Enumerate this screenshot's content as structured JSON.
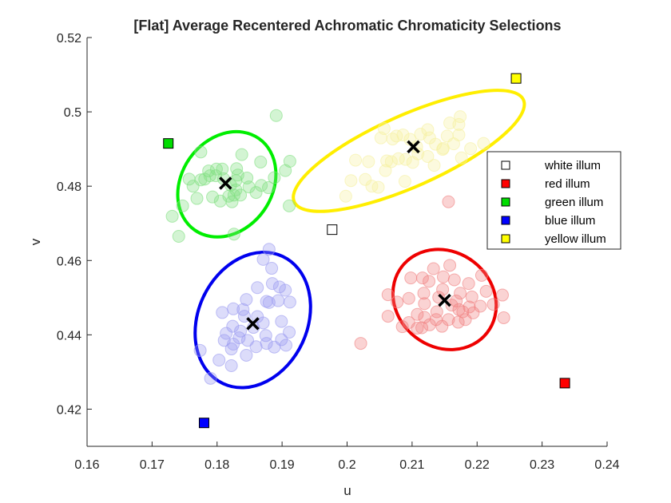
{
  "chart_data": {
    "type": "scatter",
    "title": "[Flat] Average Recentered Achromatic Chromaticity Selections",
    "xlabel": "u",
    "ylabel": "v",
    "xlim": [
      0.16,
      0.24
    ],
    "ylim": [
      0.41,
      0.52
    ],
    "xticks": [
      0.16,
      0.17,
      0.18,
      0.19,
      0.2,
      0.21,
      0.22,
      0.23,
      0.24
    ],
    "yticks": [
      0.42,
      0.44,
      0.46,
      0.48,
      0.5,
      0.52
    ],
    "xtick_labels": [
      "0.16",
      "0.17",
      "0.18",
      "0.19",
      "0.2",
      "0.21",
      "0.22",
      "0.23",
      "0.24"
    ],
    "ytick_labels": [
      "0.42",
      "0.44",
      "0.46",
      "0.48",
      "0.5",
      "0.52"
    ],
    "legend_position": "right",
    "illuminants": [
      {
        "name": "white illum",
        "color": "#ffffff",
        "u": 0.1977,
        "v": 0.4683
      },
      {
        "name": "red illum",
        "color": "#ff0000",
        "u": 0.2335,
        "v": 0.427
      },
      {
        "name": "green illum",
        "color": "#00dd00",
        "u": 0.1725,
        "v": 0.4915
      },
      {
        "name": "blue illum",
        "color": "#0000ff",
        "u": 0.178,
        "v": 0.4163
      },
      {
        "name": "yellow illum",
        "color": "#ffff00",
        "u": 0.226,
        "v": 0.509
      }
    ],
    "clusters": [
      {
        "name": "red",
        "color": "#ee0000",
        "point_color": "#f08080",
        "mean": [
          0.215,
          0.4493
        ],
        "ellipse": {
          "center": [
            0.215,
            0.4495
          ],
          "rx": 0.0083,
          "ry": 0.0128,
          "rotation_deg": 38
        },
        "points": [
          [
            0.2133,
            0.4578
          ],
          [
            0.2158,
            0.4587
          ],
          [
            0.2165,
            0.4548
          ],
          [
            0.2187,
            0.4538
          ],
          [
            0.2098,
            0.4553
          ],
          [
            0.2116,
            0.4553
          ],
          [
            0.2126,
            0.4544
          ],
          [
            0.2063,
            0.4508
          ],
          [
            0.2077,
            0.4488
          ],
          [
            0.2095,
            0.4498
          ],
          [
            0.2118,
            0.4512
          ],
          [
            0.2141,
            0.4501
          ],
          [
            0.2147,
            0.4522
          ],
          [
            0.2174,
            0.4512
          ],
          [
            0.2192,
            0.4502
          ],
          [
            0.2214,
            0.4517
          ],
          [
            0.2207,
            0.456
          ],
          [
            0.2239,
            0.4507
          ],
          [
            0.2225,
            0.4482
          ],
          [
            0.2205,
            0.4477
          ],
          [
            0.2188,
            0.4475
          ],
          [
            0.2172,
            0.4468
          ],
          [
            0.2161,
            0.448
          ],
          [
            0.2138,
            0.4462
          ],
          [
            0.2119,
            0.4447
          ],
          [
            0.2137,
            0.4441
          ],
          [
            0.2156,
            0.4441
          ],
          [
            0.2171,
            0.4434
          ],
          [
            0.2194,
            0.4459
          ],
          [
            0.2182,
            0.4441
          ],
          [
            0.2178,
            0.4462
          ],
          [
            0.2115,
            0.4419
          ],
          [
            0.2146,
            0.4423
          ],
          [
            0.2127,
            0.4427
          ],
          [
            0.2021,
            0.4377
          ],
          [
            0.2156,
            0.4758
          ],
          [
            0.2241,
            0.4446
          ],
          [
            0.2108,
            0.4455
          ],
          [
            0.2095,
            0.4433
          ],
          [
            0.2063,
            0.445
          ],
          [
            0.2085,
            0.4422
          ],
          [
            0.2108,
            0.4418
          ],
          [
            0.2119,
            0.4484
          ],
          [
            0.2148,
            0.4556
          ],
          [
            0.2168,
            0.4491
          ]
        ]
      },
      {
        "name": "green",
        "color": "#00ee00",
        "point_color": "#80e080",
        "mean": [
          0.1813,
          0.4808
        ],
        "ellipse": {
          "center": [
            0.1815,
            0.4805
          ],
          "rx": 0.0086,
          "ry": 0.0122,
          "rotation_deg": -55
        },
        "points": [
          [
            0.1775,
            0.4892
          ],
          [
            0.1787,
            0.4841
          ],
          [
            0.1789,
            0.4828
          ],
          [
            0.1781,
            0.4819
          ],
          [
            0.1798,
            0.4828
          ],
          [
            0.181,
            0.482
          ],
          [
            0.1821,
            0.4803
          ],
          [
            0.183,
            0.4847
          ],
          [
            0.1832,
            0.483
          ],
          [
            0.1829,
            0.4815
          ],
          [
            0.1829,
            0.479
          ],
          [
            0.1826,
            0.4776
          ],
          [
            0.1836,
            0.4776
          ],
          [
            0.1849,
            0.4798
          ],
          [
            0.1868,
            0.4802
          ],
          [
            0.1879,
            0.4796
          ],
          [
            0.1867,
            0.4865
          ],
          [
            0.1891,
            0.499
          ],
          [
            0.1912,
            0.4867
          ],
          [
            0.1905,
            0.4842
          ],
          [
            0.1911,
            0.4747
          ],
          [
            0.1826,
            0.4671
          ],
          [
            0.1741,
            0.4665
          ],
          [
            0.1747,
            0.4747
          ],
          [
            0.1731,
            0.4719
          ],
          [
            0.1775,
            0.4817
          ],
          [
            0.1818,
            0.4773
          ],
          [
            0.1838,
            0.4885
          ],
          [
            0.1793,
            0.4771
          ],
          [
            0.1805,
            0.476
          ],
          [
            0.1769,
            0.4767
          ],
          [
            0.1763,
            0.48
          ],
          [
            0.1799,
            0.4846
          ],
          [
            0.1846,
            0.4822
          ],
          [
            0.186,
            0.4783
          ],
          [
            0.1823,
            0.4758
          ],
          [
            0.1888,
            0.4823
          ],
          [
            0.1757,
            0.4819
          ],
          [
            0.1808,
            0.4846
          ]
        ]
      },
      {
        "name": "blue",
        "color": "#0000ee",
        "point_color": "#9b9bf0",
        "mean": [
          0.1855,
          0.443
        ],
        "ellipse": {
          "center": [
            0.1855,
            0.444
          ],
          "rx": 0.0084,
          "ry": 0.0189,
          "rotation_deg": 25
        },
        "points": [
          [
            0.188,
            0.463
          ],
          [
            0.1871,
            0.4603
          ],
          [
            0.1884,
            0.4579
          ],
          [
            0.1896,
            0.4529
          ],
          [
            0.1905,
            0.452
          ],
          [
            0.1885,
            0.4538
          ],
          [
            0.1862,
            0.4527
          ],
          [
            0.1876,
            0.449
          ],
          [
            0.1894,
            0.4492
          ],
          [
            0.1912,
            0.4488
          ],
          [
            0.1845,
            0.4495
          ],
          [
            0.184,
            0.4468
          ],
          [
            0.1825,
            0.447
          ],
          [
            0.1808,
            0.446
          ],
          [
            0.1842,
            0.445
          ],
          [
            0.1862,
            0.4449
          ],
          [
            0.1871,
            0.4432
          ],
          [
            0.1824,
            0.4423
          ],
          [
            0.1811,
            0.4385
          ],
          [
            0.1825,
            0.4375
          ],
          [
            0.1847,
            0.4385
          ],
          [
            0.186,
            0.4368
          ],
          [
            0.1875,
            0.4398
          ],
          [
            0.1876,
            0.4377
          ],
          [
            0.1888,
            0.4367
          ],
          [
            0.1906,
            0.4372
          ],
          [
            0.1899,
            0.4387
          ],
          [
            0.1822,
            0.4362
          ],
          [
            0.1822,
            0.4317
          ],
          [
            0.1845,
            0.4345
          ],
          [
            0.1774,
            0.4358
          ],
          [
            0.179,
            0.4283
          ],
          [
            0.1899,
            0.4436
          ],
          [
            0.1911,
            0.4407
          ],
          [
            0.188,
            0.4487
          ],
          [
            0.1856,
            0.442
          ],
          [
            0.1836,
            0.441
          ],
          [
            0.1814,
            0.4404
          ],
          [
            0.1803,
            0.4332
          ],
          [
            0.1834,
            0.4392
          ]
        ]
      },
      {
        "name": "yellow",
        "color": "#ffee00",
        "point_color": "#f5f0a0",
        "mean": [
          0.2102,
          0.4906
        ],
        "ellipse": {
          "center": [
            0.2095,
            0.4895
          ],
          "rx": 0.0193,
          "ry": 0.0096,
          "rotation_deg": -24
        },
        "points": [
          [
            0.2174,
            0.4987
          ],
          [
            0.2158,
            0.497
          ],
          [
            0.2172,
            0.4938
          ],
          [
            0.2164,
            0.4914
          ],
          [
            0.2154,
            0.4935
          ],
          [
            0.2124,
            0.4952
          ],
          [
            0.2127,
            0.493
          ],
          [
            0.2113,
            0.494
          ],
          [
            0.2097,
            0.4926
          ],
          [
            0.2086,
            0.4938
          ],
          [
            0.207,
            0.4927
          ],
          [
            0.2057,
            0.4955
          ],
          [
            0.2052,
            0.493
          ],
          [
            0.2124,
            0.488
          ],
          [
            0.2109,
            0.4887
          ],
          [
            0.209,
            0.4872
          ],
          [
            0.2079,
            0.4874
          ],
          [
            0.2068,
            0.4866
          ],
          [
            0.2061,
            0.4868
          ],
          [
            0.2033,
            0.4866
          ],
          [
            0.2013,
            0.487
          ],
          [
            0.2028,
            0.4818
          ],
          [
            0.2048,
            0.4797
          ],
          [
            0.2006,
            0.4815
          ],
          [
            0.1998,
            0.4773
          ],
          [
            0.2134,
            0.4856
          ],
          [
            0.2176,
            0.4876
          ],
          [
            0.219,
            0.4901
          ],
          [
            0.221,
            0.4915
          ],
          [
            0.2148,
            0.4902
          ],
          [
            0.2136,
            0.4913
          ],
          [
            0.2101,
            0.4864
          ],
          [
            0.2089,
            0.4813
          ],
          [
            0.2107,
            0.4906
          ],
          [
            0.2076,
            0.4935
          ],
          [
            0.2147,
            0.4899
          ],
          [
            0.2038,
            0.48
          ],
          [
            0.2172,
            0.4966
          ],
          [
            0.2059,
            0.4842
          ]
        ]
      }
    ]
  }
}
